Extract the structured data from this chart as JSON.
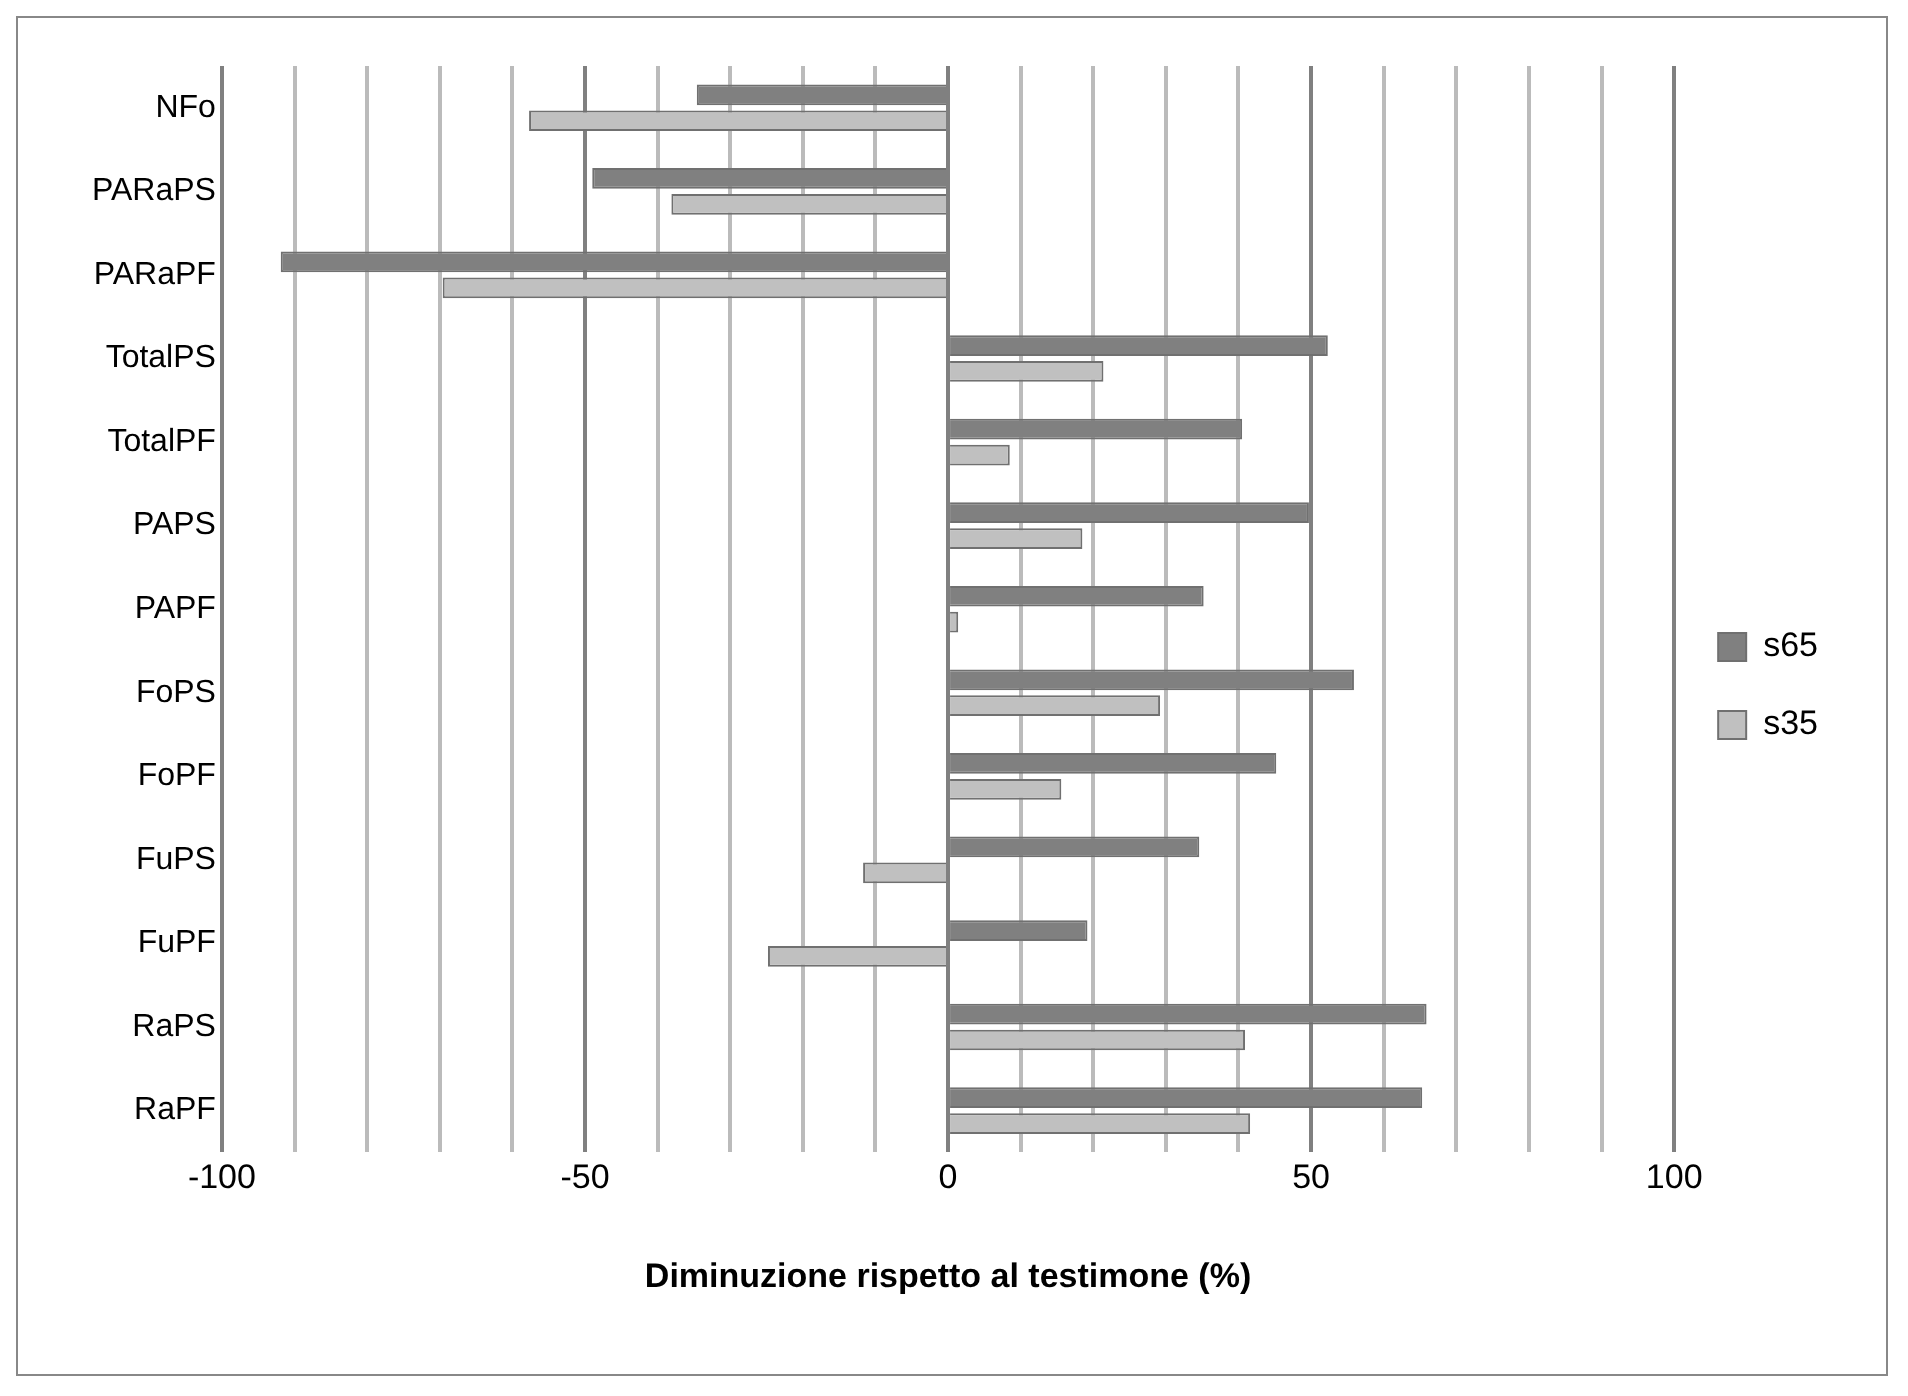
{
  "chart_data": {
    "type": "bar",
    "orientation": "horizontal",
    "xlabel": "Diminuzione rispetto al testimone (%)",
    "categories": [
      "NFo",
      "PARaPS",
      "PARaPF",
      "TotalPS",
      "TotalPF",
      "PAPS",
      "PAPF",
      "FoPS",
      "FoPF",
      "FuPS",
      "FuPF",
      "RaPS",
      "RaPF"
    ],
    "series": [
      {
        "name": "s65",
        "color": "#808080",
        "values": [
          -34.6,
          -49,
          -91.9,
          52.3,
          40.5,
          49.7,
          35.2,
          55.9,
          45.2,
          34.6,
          19.2,
          65.9,
          65.3
        ]
      },
      {
        "name": "s35",
        "color": "#c0c0c0",
        "values": [
          -57.7,
          -38.1,
          -69.6,
          21.4,
          8.5,
          18.5,
          1.4,
          29.2,
          15.6,
          -11.7,
          -24.8,
          40.9,
          41.6
        ]
      }
    ],
    "xlim": [
      -100,
      100
    ],
    "xticks": [
      -100,
      {
        "value": -90,
        "label": null
      },
      {
        "value": -80,
        "label": null
      },
      {
        "value": -70,
        "label": null
      },
      {
        "value": -60,
        "label": null
      },
      -50,
      {
        "value": -40,
        "label": null
      },
      {
        "value": -30,
        "label": null
      },
      {
        "value": -20,
        "label": null
      },
      {
        "value": -10,
        "label": null
      },
      0,
      {
        "value": 10,
        "label": null
      },
      {
        "value": 20,
        "label": null
      },
      {
        "value": 30,
        "label": null
      },
      {
        "value": 40,
        "label": null
      },
      50,
      {
        "value": 60,
        "label": null
      },
      {
        "value": 70,
        "label": null
      },
      {
        "value": 80,
        "label": null
      },
      {
        "value": 90,
        "label": null
      },
      100
    ],
    "grid": "x",
    "legend": "right"
  }
}
